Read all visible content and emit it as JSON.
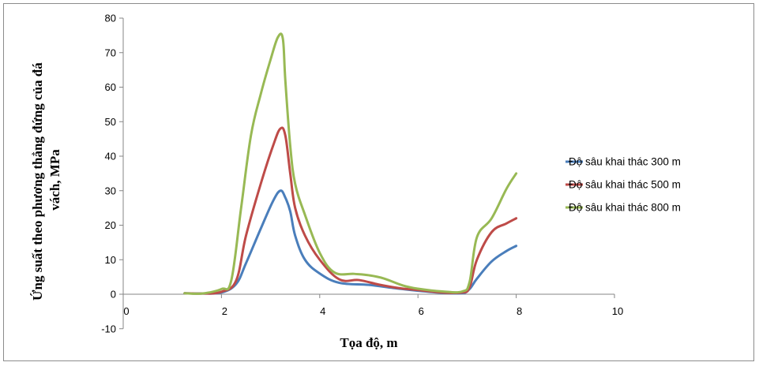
{
  "chart_data": {
    "type": "line",
    "title": "",
    "xlabel": "Tọa độ, m",
    "ylabel_lines": [
      "Ứng suất theo phương thẳng đứng của đá",
      "vách, MPa"
    ],
    "xlim": [
      0,
      10
    ],
    "ylim": [
      -10,
      80
    ],
    "xticks": [
      "0",
      "2",
      "4",
      "6",
      "8",
      "10"
    ],
    "yticks": [
      "-10",
      "0",
      "10",
      "20",
      "30",
      "40",
      "50",
      "60",
      "70",
      "80"
    ],
    "grid": false,
    "legend_position": "right",
    "series": [
      {
        "name": "Độ sâu khai thác 300 m",
        "color": "#4a7ebb",
        "x": [
          1.25,
          1.6,
          2.0,
          2.3,
          2.5,
          2.8,
          3.05,
          3.2,
          3.3,
          3.4,
          3.5,
          3.7,
          4.0,
          4.4,
          5.0,
          5.5,
          6.0,
          6.5,
          6.9,
          7.05,
          7.2,
          7.5,
          7.8,
          8.0
        ],
        "y": [
          0.3,
          0.2,
          0.5,
          3.0,
          9.0,
          19.0,
          27.0,
          30.0,
          28.0,
          24.0,
          17.0,
          10.0,
          6.0,
          3.3,
          2.7,
          1.8,
          1.0,
          0.4,
          0.3,
          1.5,
          4.5,
          9.5,
          12.5,
          14.0
        ]
      },
      {
        "name": "Độ sâu khai thác 500 m",
        "color": "#be4b48",
        "x": [
          1.25,
          1.6,
          2.0,
          2.3,
          2.5,
          2.8,
          3.05,
          3.2,
          3.3,
          3.4,
          3.5,
          3.7,
          4.0,
          4.4,
          4.8,
          5.2,
          5.6,
          6.0,
          6.5,
          6.9,
          7.05,
          7.2,
          7.5,
          7.8,
          8.0
        ],
        "y": [
          0.3,
          0.2,
          0.7,
          4.0,
          17.0,
          32.0,
          43.0,
          48.0,
          46.0,
          35.0,
          25.0,
          17.0,
          10.0,
          4.3,
          4.1,
          2.8,
          1.8,
          1.2,
          0.5,
          0.5,
          2.0,
          10.0,
          18.0,
          20.5,
          22.0
        ]
      },
      {
        "name": "Độ sâu khai thác 800 m",
        "color": "#98b954",
        "x": [
          1.25,
          1.6,
          2.0,
          2.2,
          2.4,
          2.6,
          2.8,
          3.0,
          3.15,
          3.25,
          3.3,
          3.4,
          3.5,
          3.7,
          4.0,
          4.3,
          4.7,
          5.0,
          5.3,
          5.7,
          6.0,
          6.5,
          6.9,
          7.05,
          7.2,
          7.5,
          7.8,
          8.0
        ],
        "y": [
          0.3,
          0.2,
          1.5,
          4.0,
          25.0,
          46.0,
          58.0,
          68.0,
          74.5,
          74.0,
          62.0,
          43.0,
          32.0,
          23.0,
          12.0,
          6.3,
          5.9,
          5.5,
          4.6,
          2.5,
          1.6,
          0.8,
          0.8,
          3.5,
          16.5,
          22.0,
          30.5,
          35.0
        ]
      }
    ]
  }
}
